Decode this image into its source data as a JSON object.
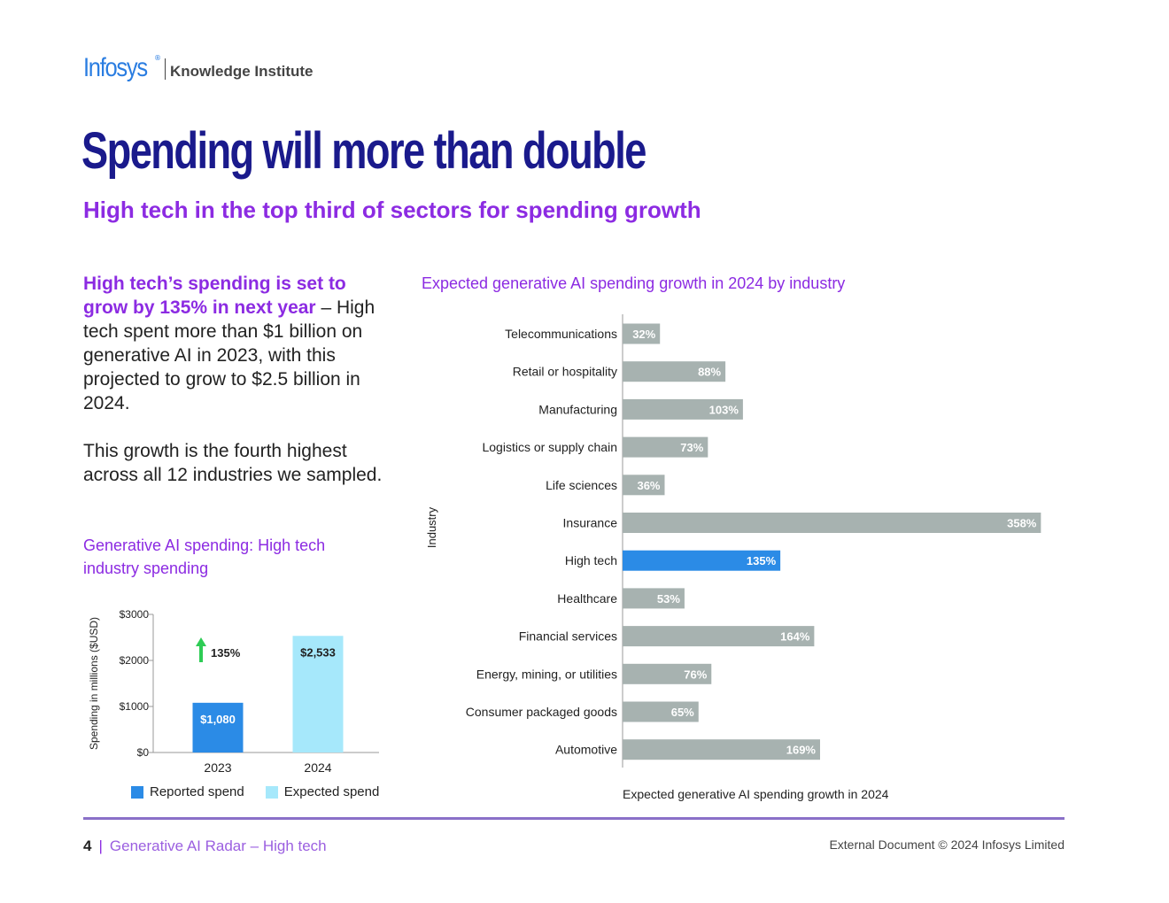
{
  "logo": {
    "brand": "Infosys",
    "registered": "®",
    "institute": "Knowledge Institute"
  },
  "title": "Spending will more than double",
  "subtitle": "High tech in the top third of sectors for spending growth",
  "body": {
    "highlight": "High tech’s spending is set to grow by 135% in next year",
    "p1_rest": " – High tech spent more than $1 billion on generative AI in 2023, with this projected to grow to $2.5 billion in 2024.",
    "p2": "This growth is the fourth highest across all 12 industries we sampled."
  },
  "colors": {
    "reported": "#2b8be6",
    "expected": "#a6e8fb",
    "bar_default": "#a7b2b0",
    "bar_highlight": "#2b8be6",
    "arrow": "#2ecc55",
    "accent_purple": "#8c2be2",
    "title_navy": "#1a1a8c"
  },
  "chart_data": [
    {
      "type": "bar",
      "title": "Generative AI spending: High tech industry spending",
      "categories": [
        "2023",
        "2024"
      ],
      "values": [
        1080,
        2533
      ],
      "value_labels": [
        "$1,080",
        "$2,533"
      ],
      "series": [
        {
          "name": "Reported spend",
          "values": [
            1080,
            null
          ]
        },
        {
          "name": "Expected spend",
          "values": [
            null,
            2533
          ]
        }
      ],
      "growth_label": "135%",
      "ylabel": "Spending in millions ($USD)",
      "ylim": [
        0,
        3000
      ],
      "yticks": [
        0,
        1000,
        2000,
        3000
      ],
      "ytick_labels": [
        "$0",
        "$1000",
        "$2000",
        "$3000"
      ],
      "legend_position": "bottom",
      "grid": false
    },
    {
      "type": "bar",
      "orientation": "horizontal",
      "title": "Expected generative AI spending growth in 2024 by industry",
      "categories": [
        "Telecommunications",
        "Retail or hospitality",
        "Manufacturing",
        "Logistics or supply chain",
        "Life sciences",
        "Insurance",
        "High tech",
        "Healthcare",
        "Financial services",
        "Energy, mining, or utilities",
        "Consumer packaged goods",
        "Automotive"
      ],
      "values": [
        32,
        88,
        103,
        73,
        36,
        358,
        135,
        53,
        164,
        76,
        65,
        169
      ],
      "value_labels": [
        "32%",
        "88%",
        "103%",
        "73%",
        "36%",
        "358%",
        "135%",
        "53%",
        "164%",
        "76%",
        "65%",
        "169%"
      ],
      "highlight": "High tech",
      "xlabel": "Expected generative AI spending growth in 2024",
      "ylabel": "Industry",
      "xlim": [
        0,
        360
      ],
      "grid": false
    }
  ],
  "footer": {
    "page": "4",
    "separator": "|",
    "doc_title": "Generative AI Radar – High tech",
    "copyright": "External Document © 2024 Infosys Limited"
  }
}
